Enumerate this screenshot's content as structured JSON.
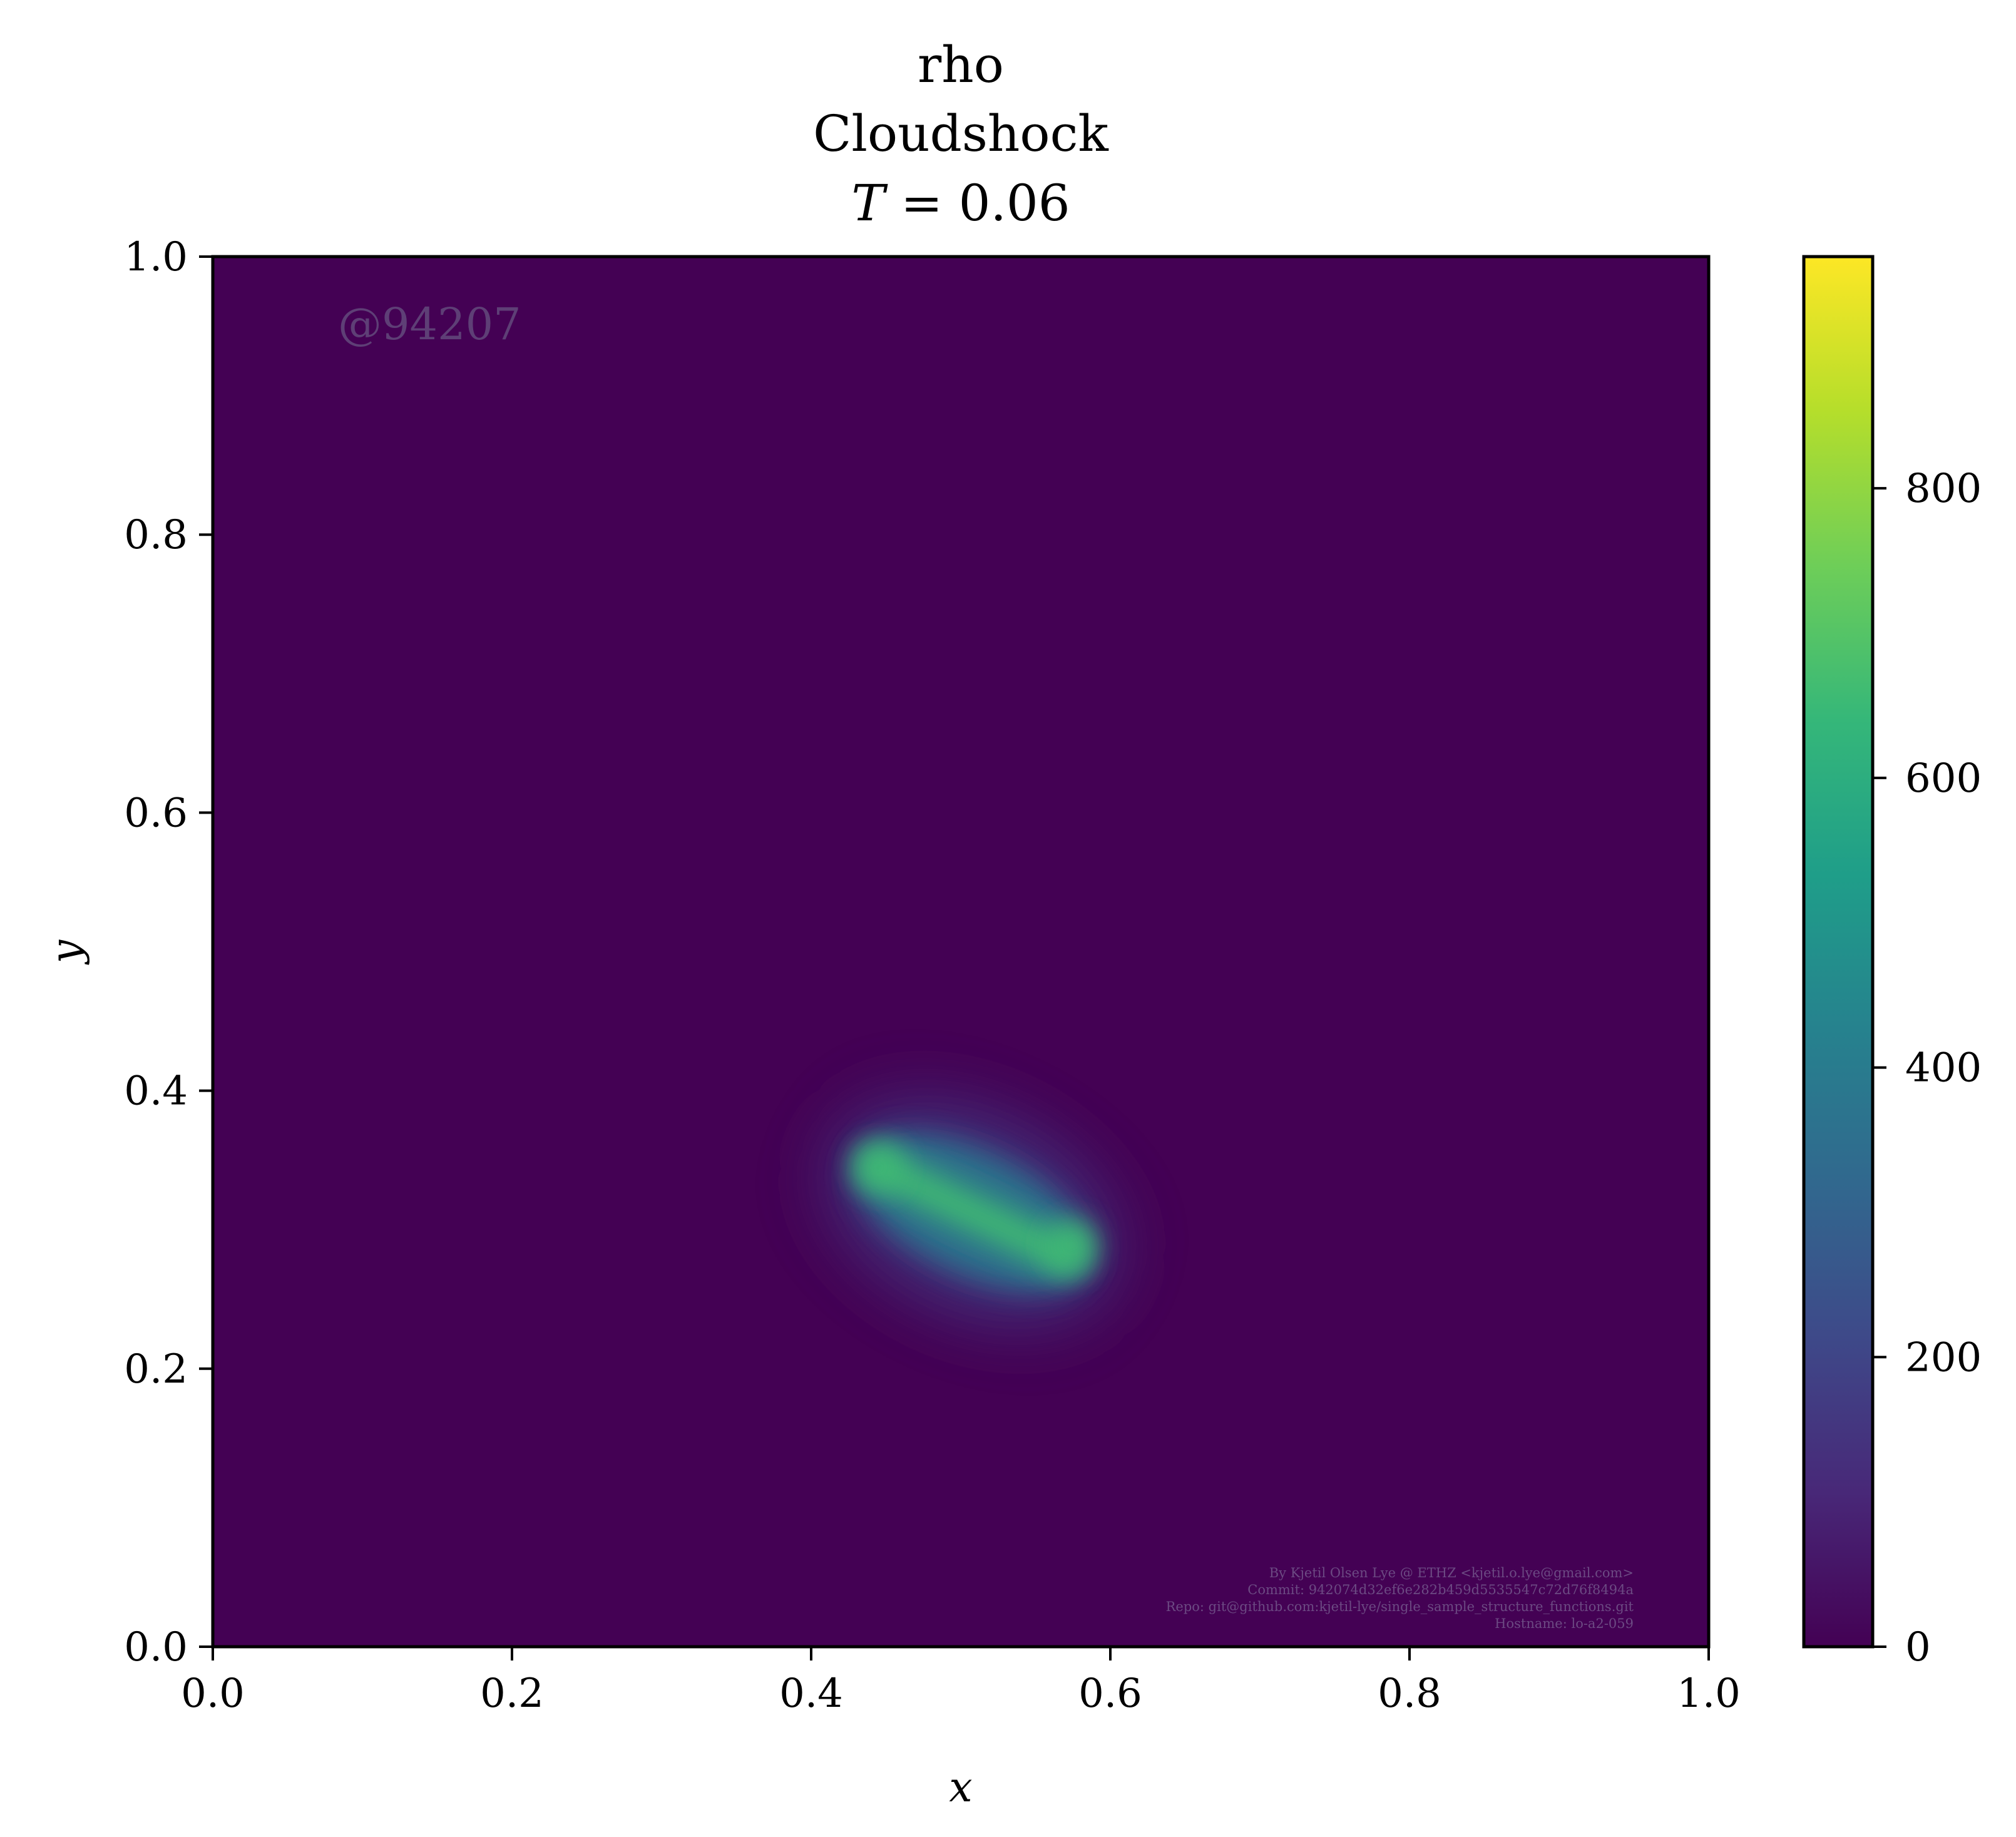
{
  "chart_data": [
    {
      "type": "heatmap",
      "title_lines": [
        "rho",
        "Cloudshock",
        "T = 0.06"
      ],
      "title_time_symbol": "T",
      "title_time_rest": " = 0.06",
      "xlabel": "x",
      "ylabel": "y",
      "xlim": [
        0.0,
        1.0
      ],
      "ylim": [
        0.0,
        1.0
      ],
      "xticks": [
        0.0,
        0.2,
        0.4,
        0.6,
        0.8,
        1.0
      ],
      "xtick_labels": [
        "0.0",
        "0.2",
        "0.4",
        "0.6",
        "0.8",
        "1.0"
      ],
      "yticks": [
        0.0,
        0.2,
        0.4,
        0.6,
        0.8,
        1.0
      ],
      "ytick_labels": [
        "0.0",
        "0.2",
        "0.4",
        "0.6",
        "0.8",
        "1.0"
      ],
      "colormap": "viridis",
      "background_value": 0,
      "feature": {
        "description": "elongated dense cloud band",
        "start": [
          0.445,
          0.345
        ],
        "end": [
          0.57,
          0.28
        ],
        "peak_value": 660,
        "halo_value": 180
      },
      "colorbar": {
        "range": [
          0,
          960
        ],
        "ticks": [
          0,
          200,
          400,
          600,
          800
        ],
        "tick_labels": [
          "0",
          "200",
          "400",
          "600",
          "800"
        ]
      },
      "grid": false
    }
  ],
  "watermark": {
    "id_text": "@94207",
    "credits": [
      "By Kjetil Olsen Lye @ ETHZ <kjetil.o.lye@gmail.com>",
      "Commit: 942074d32ef6e282b459d5535547c72d76f8494a",
      "Repo: git@github.com:kjetil-lye/single_sample_structure_functions.git",
      "Hostname: lo-a2-059"
    ]
  },
  "colors": {
    "background_field": "#440154",
    "viridis_stops": [
      "#440154",
      "#482878",
      "#3e4989",
      "#31688e",
      "#26828e",
      "#1f9e89",
      "#35b779",
      "#6ece58",
      "#b5de2b",
      "#fde725"
    ]
  }
}
